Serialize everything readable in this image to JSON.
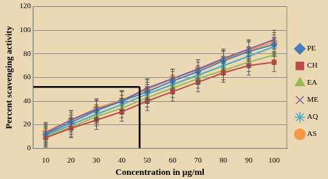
{
  "chart_data": {
    "type": "line",
    "x_label": "Concentration in µg/ml",
    "y_label": "Percent scavenging activity",
    "x": [
      10,
      20,
      30,
      40,
      50,
      60,
      70,
      80,
      90,
      100
    ],
    "xlim": [
      5,
      105
    ],
    "xticks": [
      10,
      20,
      30,
      40,
      50,
      60,
      70,
      80,
      90,
      100
    ],
    "ylim": [
      0,
      120
    ],
    "yticks": [
      0,
      20,
      40,
      60,
      80,
      100,
      120
    ],
    "grid": true,
    "legend": "right",
    "guide": {
      "x": 47,
      "y": 52
    },
    "series": [
      {
        "name": "PE",
        "color": "#4a7ebb",
        "marker": "diamond",
        "values": [
          12,
          22,
          32,
          40,
          48,
          57,
          65,
          74,
          82,
          88
        ],
        "errors": [
          8,
          8,
          8,
          8,
          8,
          8,
          8,
          8,
          8,
          8
        ]
      },
      {
        "name": "CH",
        "color": "#be4b48",
        "marker": "square",
        "values": [
          9,
          17,
          24,
          31,
          40,
          48,
          56,
          64,
          70,
          73
        ],
        "errors": [
          8,
          8,
          8,
          8,
          8,
          8,
          8,
          8,
          8,
          8
        ]
      },
      {
        "name": "EA",
        "color": "#98b954",
        "marker": "triangle",
        "values": [
          10,
          18,
          27,
          34,
          43,
          51,
          59,
          66,
          73,
          79
        ],
        "errors": [
          8,
          8,
          8,
          8,
          8,
          8,
          8,
          8,
          8,
          8
        ]
      },
      {
        "name": "ME",
        "color": "#7d60a0",
        "marker": "x",
        "values": [
          13,
          24,
          33,
          40,
          51,
          59,
          67,
          76,
          84,
          92
        ],
        "errors": [
          8,
          8,
          8,
          8,
          8,
          8,
          8,
          8,
          8,
          8
        ]
      },
      {
        "name": "AQ",
        "color": "#46aac5",
        "marker": "star",
        "values": [
          11,
          20,
          29,
          37,
          46,
          54,
          62,
          70,
          78,
          86
        ],
        "errors": [
          8,
          8,
          8,
          8,
          8,
          8,
          8,
          8,
          8,
          8
        ]
      },
      {
        "name": "AS",
        "color": "#f79646",
        "marker": "circle",
        "values": [
          14,
          24,
          34,
          41,
          50,
          59,
          67,
          75,
          83,
          90
        ],
        "errors": [
          8,
          8,
          8,
          8,
          8,
          8,
          8,
          8,
          8,
          8
        ]
      }
    ]
  }
}
